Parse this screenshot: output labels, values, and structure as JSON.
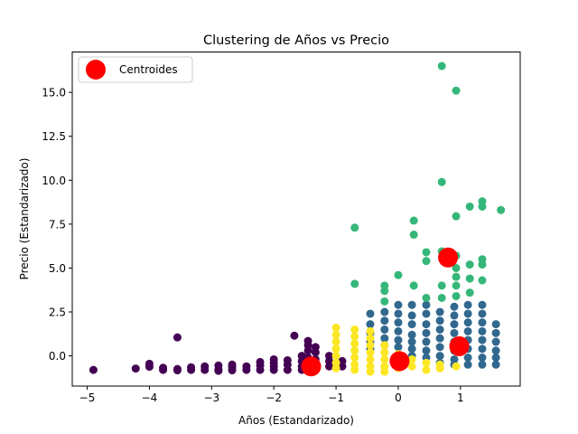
{
  "chart_data": {
    "type": "scatter",
    "title": "Clustering de Años vs Precio",
    "xlabel": "Años (Estandarizado)",
    "ylabel": "Precio (Estandarizado)",
    "xlim": [
      -5.24,
      1.96
    ],
    "ylim": [
      -1.72,
      17.3
    ],
    "xticks": [
      -5,
      -4,
      -3,
      -2,
      -1,
      0,
      1
    ],
    "xtick_labels": [
      "−5",
      "−4",
      "−3",
      "−2",
      "−1",
      "0",
      "1"
    ],
    "yticks": [
      0.0,
      2.5,
      5.0,
      7.5,
      10.0,
      12.5,
      15.0
    ],
    "ytick_labels": [
      "0.0",
      "2.5",
      "5.0",
      "7.5",
      "10.0",
      "12.5",
      "15.0"
    ],
    "grid": false,
    "legend": {
      "position": "top-left",
      "entries": [
        "Centroides"
      ]
    },
    "colors": {
      "cluster_0": "#440154",
      "cluster_1": "#31688e",
      "cluster_2": "#35b779",
      "cluster_3": "#fde725",
      "centroid": "#ff0000"
    },
    "series": [
      {
        "cluster": 0,
        "points": [
          [
            -4.9,
            -0.8
          ],
          [
            -4.22,
            -0.72
          ],
          [
            -4.0,
            -0.45
          ],
          [
            -4.0,
            -0.62
          ],
          [
            -3.78,
            -0.68
          ],
          [
            -3.78,
            -0.8
          ],
          [
            -3.55,
            1.05
          ],
          [
            -3.55,
            -0.75
          ],
          [
            -3.55,
            -0.82
          ],
          [
            -3.33,
            -0.65
          ],
          [
            -3.33,
            -0.8
          ],
          [
            -3.11,
            -0.6
          ],
          [
            -3.11,
            -0.8
          ],
          [
            -2.89,
            -0.55
          ],
          [
            -2.89,
            -0.78
          ],
          [
            -2.89,
            -0.85
          ],
          [
            -2.67,
            -0.5
          ],
          [
            -2.67,
            -0.65
          ],
          [
            -2.67,
            -0.82
          ],
          [
            -2.44,
            -0.6
          ],
          [
            -2.44,
            -0.8
          ],
          [
            -2.22,
            -0.35
          ],
          [
            -2.22,
            -0.55
          ],
          [
            -2.22,
            -0.8
          ],
          [
            -2.0,
            -0.2
          ],
          [
            -2.0,
            -0.4
          ],
          [
            -2.0,
            -0.6
          ],
          [
            -2.0,
            -0.8
          ],
          [
            -1.78,
            -0.25
          ],
          [
            -1.78,
            -0.5
          ],
          [
            -1.78,
            -0.8
          ],
          [
            -1.67,
            1.15
          ],
          [
            -1.55,
            0.0
          ],
          [
            -1.55,
            -0.3
          ],
          [
            -1.55,
            -0.6
          ],
          [
            -1.55,
            -0.8
          ],
          [
            -1.45,
            0.85
          ],
          [
            -1.45,
            0.6
          ],
          [
            -1.45,
            0.3
          ],
          [
            -1.45,
            -0.1
          ],
          [
            -1.45,
            -0.5
          ],
          [
            -1.33,
            0.5
          ],
          [
            -1.33,
            0.2
          ],
          [
            -1.33,
            -0.2
          ],
          [
            -1.33,
            -0.6
          ],
          [
            -1.11,
            0.0
          ],
          [
            -1.11,
            -0.3
          ],
          [
            -1.11,
            -0.6
          ],
          [
            -0.9,
            -0.3
          ],
          [
            -0.9,
            -0.6
          ]
        ]
      },
      {
        "cluster": 1,
        "points": [
          [
            -0.45,
            2.4
          ],
          [
            -0.45,
            1.8
          ],
          [
            -0.45,
            1.3
          ],
          [
            -0.45,
            0.8
          ],
          [
            -0.45,
            0.4
          ],
          [
            -0.22,
            2.5
          ],
          [
            -0.22,
            2.0
          ],
          [
            -0.22,
            1.5
          ],
          [
            -0.22,
            1.0
          ],
          [
            -0.22,
            0.6
          ],
          [
            0.0,
            2.9
          ],
          [
            0.0,
            2.4
          ],
          [
            0.0,
            1.9
          ],
          [
            0.0,
            1.4
          ],
          [
            0.0,
            0.9
          ],
          [
            0.0,
            0.5
          ],
          [
            0.22,
            2.9
          ],
          [
            0.22,
            2.3
          ],
          [
            0.22,
            1.8
          ],
          [
            0.22,
            1.2
          ],
          [
            0.22,
            0.8
          ],
          [
            0.22,
            0.4
          ],
          [
            0.22,
            0.0
          ],
          [
            0.45,
            2.9
          ],
          [
            0.45,
            2.4
          ],
          [
            0.45,
            1.8
          ],
          [
            0.45,
            1.3
          ],
          [
            0.45,
            0.8
          ],
          [
            0.45,
            0.3
          ],
          [
            0.45,
            -0.1
          ],
          [
            0.67,
            2.5
          ],
          [
            0.67,
            2.0
          ],
          [
            0.67,
            1.5
          ],
          [
            0.67,
            1.0
          ],
          [
            0.67,
            0.5
          ],
          [
            0.67,
            0.0
          ],
          [
            0.67,
            -0.4
          ],
          [
            0.9,
            2.8
          ],
          [
            0.9,
            2.3
          ],
          [
            0.9,
            1.8
          ],
          [
            0.9,
            1.3
          ],
          [
            0.9,
            0.8
          ],
          [
            0.9,
            0.3
          ],
          [
            0.9,
            -0.2
          ],
          [
            0.9,
            -0.5
          ],
          [
            1.12,
            2.9
          ],
          [
            1.12,
            2.4
          ],
          [
            1.12,
            1.9
          ],
          [
            1.12,
            1.4
          ],
          [
            1.12,
            0.9
          ],
          [
            1.12,
            0.4
          ],
          [
            1.12,
            -0.1
          ],
          [
            1.12,
            -0.5
          ],
          [
            1.35,
            2.9
          ],
          [
            1.35,
            2.4
          ],
          [
            1.35,
            1.9
          ],
          [
            1.35,
            1.4
          ],
          [
            1.35,
            0.9
          ],
          [
            1.35,
            0.4
          ],
          [
            1.35,
            -0.1
          ],
          [
            1.35,
            -0.5
          ],
          [
            1.57,
            1.8
          ],
          [
            1.57,
            1.3
          ],
          [
            1.57,
            0.8
          ],
          [
            1.57,
            0.3
          ],
          [
            1.57,
            -0.1
          ],
          [
            1.57,
            -0.5
          ]
        ]
      },
      {
        "cluster": 2,
        "points": [
          [
            0.7,
            16.5
          ],
          [
            0.93,
            15.1
          ],
          [
            0.7,
            9.9
          ],
          [
            0.93,
            7.95
          ],
          [
            1.15,
            8.5
          ],
          [
            1.35,
            8.8
          ],
          [
            1.35,
            8.5
          ],
          [
            1.65,
            8.3
          ],
          [
            -0.7,
            7.3
          ],
          [
            0.25,
            7.7
          ],
          [
            0.25,
            6.9
          ],
          [
            0.45,
            5.9
          ],
          [
            0.45,
            5.4
          ],
          [
            0.7,
            5.95
          ],
          [
            0.93,
            5.7
          ],
          [
            0.93,
            5.0
          ],
          [
            0.93,
            4.5
          ],
          [
            0.93,
            4.0
          ],
          [
            1.15,
            5.2
          ],
          [
            1.15,
            4.4
          ],
          [
            1.15,
            3.6
          ],
          [
            1.35,
            5.5
          ],
          [
            1.35,
            5.2
          ],
          [
            1.35,
            4.3
          ],
          [
            -0.7,
            4.1
          ],
          [
            0.0,
            4.6
          ],
          [
            -0.22,
            4.0
          ],
          [
            -0.22,
            3.7
          ],
          [
            -0.22,
            3.1
          ],
          [
            0.25,
            4.0
          ],
          [
            0.45,
            3.3
          ],
          [
            0.7,
            4.0
          ],
          [
            0.7,
            3.3
          ],
          [
            0.93,
            3.4
          ]
        ]
      },
      {
        "cluster": 3,
        "points": [
          [
            -1.0,
            1.6
          ],
          [
            -1.0,
            1.2
          ],
          [
            -1.0,
            0.8
          ],
          [
            -1.0,
            0.4
          ],
          [
            -1.0,
            0.0
          ],
          [
            -1.0,
            -0.4
          ],
          [
            -1.0,
            -0.7
          ],
          [
            -0.7,
            1.5
          ],
          [
            -0.7,
            1.1
          ],
          [
            -0.7,
            0.7
          ],
          [
            -0.7,
            0.3
          ],
          [
            -0.7,
            -0.1
          ],
          [
            -0.7,
            -0.5
          ],
          [
            -0.7,
            -0.8
          ],
          [
            -0.45,
            1.4
          ],
          [
            -0.45,
            1.0
          ],
          [
            -0.45,
            0.6
          ],
          [
            -0.45,
            0.2
          ],
          [
            -0.45,
            -0.2
          ],
          [
            -0.45,
            -0.6
          ],
          [
            -0.45,
            -0.9
          ],
          [
            -0.22,
            0.6
          ],
          [
            -0.22,
            0.2
          ],
          [
            -0.22,
            -0.2
          ],
          [
            -0.22,
            -0.6
          ],
          [
            -0.22,
            -0.9
          ],
          [
            0.0,
            0.1
          ],
          [
            0.0,
            -0.3
          ],
          [
            0.0,
            -0.7
          ],
          [
            0.22,
            -0.2
          ],
          [
            0.22,
            -0.6
          ],
          [
            0.45,
            -0.4
          ],
          [
            0.45,
            -0.8
          ],
          [
            0.67,
            -0.5
          ],
          [
            0.67,
            -0.7
          ],
          [
            0.93,
            -0.6
          ]
        ]
      }
    ],
    "centroids": [
      {
        "x": -1.4,
        "y": -0.6
      },
      {
        "x": 0.02,
        "y": -0.3
      },
      {
        "x": 0.8,
        "y": 5.6
      },
      {
        "x": 0.98,
        "y": 0.55
      }
    ]
  }
}
